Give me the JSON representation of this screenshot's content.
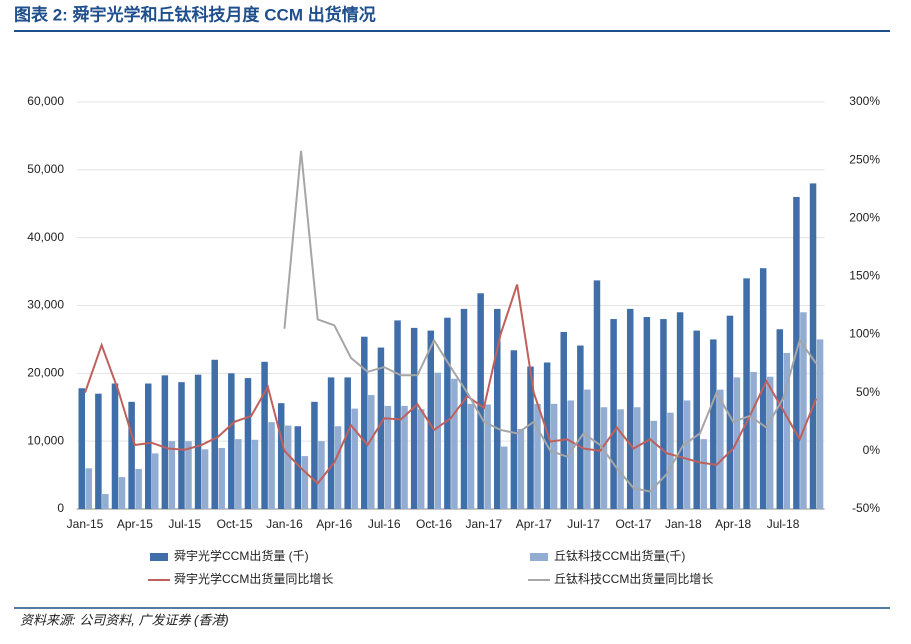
{
  "chart_data": {
    "type": "bar-line",
    "title": "图表 2: 舜宇光学和丘钛科技月度 CCM 出货情况",
    "source": "资料来源: 公司资料, 广发证券 (香港)",
    "categories": [
      "Jan-15",
      null,
      null,
      "Apr-15",
      null,
      null,
      "Jul-15",
      null,
      null,
      "Oct-15",
      null,
      null,
      "Jan-16",
      null,
      null,
      "Apr-16",
      null,
      null,
      "Jul-16",
      null,
      null,
      "Oct-16",
      null,
      null,
      "Jan-17",
      null,
      null,
      "Apr-17",
      null,
      null,
      "Jul-17",
      null,
      null,
      "Oct-17",
      null,
      null,
      "Jan-18",
      null,
      null,
      "Apr-18",
      null,
      null,
      "Jul-18",
      null,
      null
    ],
    "ylim": [
      0,
      60000
    ],
    "yticks": [
      0,
      {
        "value": 10000,
        "label": "10,000"
      },
      {
        "value": 20000,
        "label": "20,000"
      },
      {
        "value": 30000,
        "label": "30,000"
      },
      {
        "value": 40000,
        "label": "40,000"
      },
      {
        "value": 50000,
        "label": "50,000"
      },
      {
        "value": 60000,
        "label": "60,000"
      }
    ],
    "y2lim": [
      -50,
      300
    ],
    "y2ticks": [
      {
        "value": -50,
        "label": "-50%"
      },
      {
        "value": 0,
        "label": "0%"
      },
      {
        "value": 50,
        "label": "50%"
      },
      {
        "value": 100,
        "label": "100%"
      },
      {
        "value": 150,
        "label": "150%"
      },
      {
        "value": 200,
        "label": "200%"
      },
      {
        "value": 250,
        "label": "250%"
      },
      {
        "value": 300,
        "label": "300%"
      }
    ],
    "grid": true,
    "series": [
      {
        "name": "舜宇光学CCM出货量 (千)",
        "kind": "bar",
        "color": "#3f6ea8",
        "values": [
          17800,
          17000,
          18500,
          15800,
          18500,
          19700,
          18700,
          19800,
          22000,
          20000,
          19300,
          21700,
          15600,
          12200,
          15800,
          19400,
          19400,
          25400,
          23800,
          27800,
          26700,
          26300,
          28200,
          29500,
          31800,
          29500,
          23400,
          21000,
          21600,
          26100,
          24100,
          33700,
          28000,
          29500,
          28300,
          28000,
          29000,
          26300,
          25000,
          28500,
          34000,
          35500,
          26500,
          46000,
          48000
        ]
      },
      {
        "name": "丘钛科技CCM出货量(千)",
        "kind": "bar",
        "color": "#92acd2",
        "values": [
          6000,
          2200,
          4700,
          5900,
          8200,
          10000,
          10000,
          8800,
          9000,
          10300,
          10200,
          12800,
          12300,
          7800,
          10000,
          12200,
          14800,
          16800,
          15200,
          15200,
          14700,
          20100,
          19200,
          15500,
          15400,
          9200,
          11800,
          15500,
          15500,
          16000,
          17600,
          15000,
          14700,
          15000,
          13000,
          14200,
          16000,
          10300,
          17600,
          19400,
          20200,
          19500,
          23000,
          29000,
          25000
        ]
      },
      {
        "name": "舜宇光学CCM出货量同比增长",
        "kind": "line",
        "axis": "y2",
        "color": "#c0605c",
        "values": [
          50,
          91,
          52,
          5,
          7,
          2,
          1,
          5,
          12,
          25,
          30,
          55,
          0,
          -15,
          -28,
          -10,
          22,
          5,
          28,
          27,
          40,
          18,
          28,
          47,
          37,
          100,
          143,
          50,
          8,
          10,
          2,
          0,
          20,
          2,
          10,
          -2,
          -6,
          -10,
          -12,
          2,
          30,
          60,
          35,
          10,
          45
        ]
      },
      {
        "name": "丘钛科技CCM出货量同比增长",
        "kind": "line",
        "axis": "y2",
        "color": "#a6a6a6",
        "values": [
          null,
          null,
          null,
          null,
          null,
          null,
          null,
          null,
          null,
          null,
          null,
          null,
          105,
          258,
          113,
          108,
          80,
          68,
          72,
          65,
          65,
          95,
          72,
          50,
          25,
          18,
          15,
          25,
          0,
          -5,
          15,
          5,
          -15,
          -32,
          -35,
          -20,
          5,
          15,
          50,
          25,
          30,
          20,
          45,
          95,
          75
        ]
      }
    ]
  }
}
